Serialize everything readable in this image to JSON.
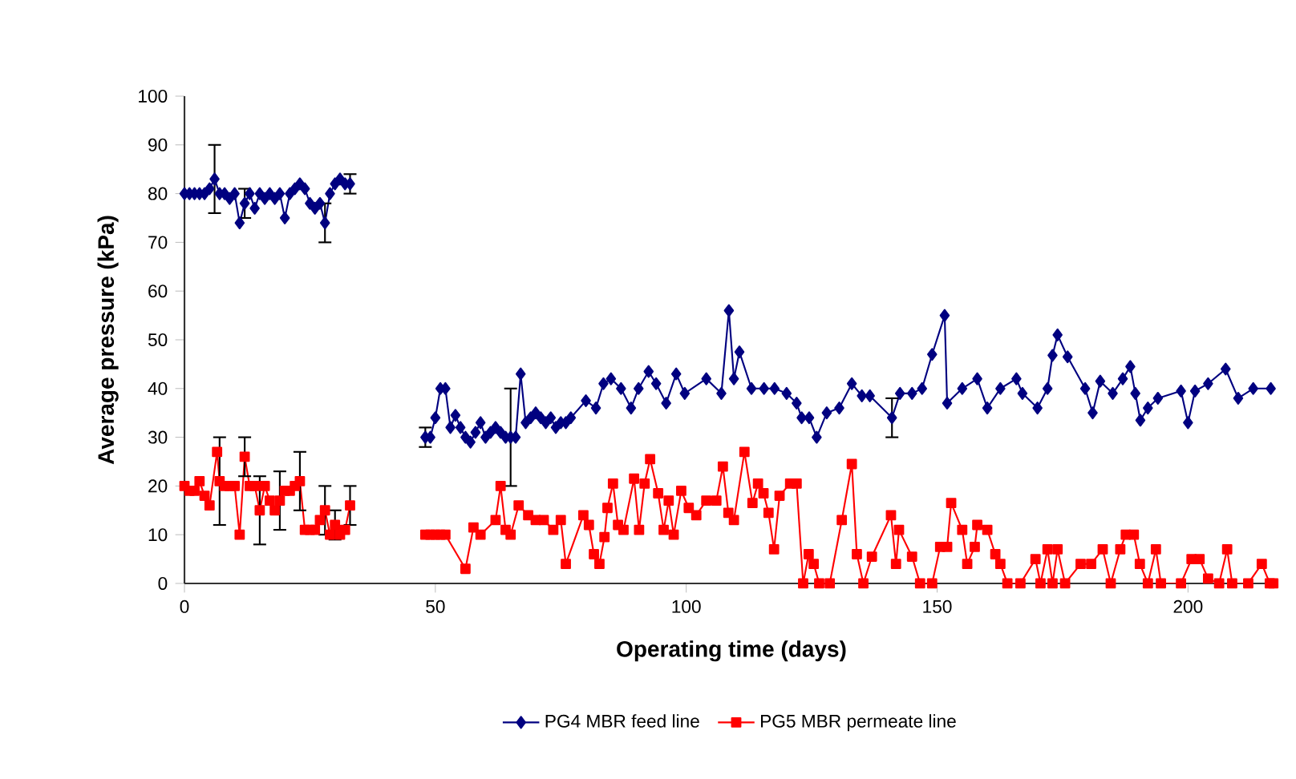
{
  "chart_data": {
    "type": "line",
    "xlabel": "Operating time (days)",
    "ylabel": "Average pressure (kPa)",
    "xlim": [
      0,
      218
    ],
    "xticks": [
      0,
      50,
      100,
      150,
      200
    ],
    "ylim": [
      0,
      100
    ],
    "yticks": [
      0,
      10,
      20,
      30,
      40,
      50,
      60,
      70,
      80,
      90,
      100
    ],
    "grid": false,
    "legend": "bottom",
    "series": [
      {
        "name": "PG4 MBR feed line",
        "color": "#000080",
        "marker": "diamond",
        "x": [
          0,
          1,
          2,
          3,
          4,
          5,
          6,
          7,
          8,
          9,
          10,
          11,
          12,
          13,
          14,
          15,
          16,
          17,
          18,
          19,
          20,
          21,
          22,
          23,
          24,
          25,
          26,
          27,
          28,
          29,
          30,
          31,
          32,
          33,
          40,
          48,
          49,
          50,
          51,
          52,
          53,
          54,
          55,
          56,
          57,
          58,
          59,
          60,
          61,
          62,
          63,
          64,
          65,
          66,
          67,
          68,
          69,
          70,
          71,
          72,
          73,
          74,
          75,
          76,
          77,
          80,
          82,
          83.5,
          85,
          87,
          89,
          90.5,
          92.5,
          94,
          96,
          98,
          99.7,
          104,
          107,
          108.5,
          109.5,
          110.6,
          113,
          115.5,
          117.6,
          120,
          122,
          123,
          124.5,
          126,
          128,
          130.5,
          133,
          135,
          136.6,
          141,
          142.6,
          145,
          147,
          149,
          151.5,
          152,
          155,
          158,
          160,
          162.6,
          165.8,
          167,
          170,
          172,
          173,
          174,
          176,
          179.5,
          181,
          182.5,
          185,
          187,
          188.5,
          189.5,
          190.5,
          192,
          194,
          198.6,
          200,
          201.4,
          204,
          207.5,
          210,
          213,
          216.5
        ],
        "values": [
          80,
          80,
          80,
          80,
          80,
          81,
          83,
          80,
          80,
          79,
          80,
          74,
          78,
          80,
          77,
          80,
          79,
          80,
          79,
          80,
          75,
          80,
          81,
          82,
          81,
          78,
          77,
          78,
          74,
          80,
          82,
          83,
          82,
          82,
          null,
          30,
          30,
          34,
          40,
          40,
          32,
          34.5,
          32,
          30,
          29,
          31,
          33,
          30,
          31,
          32,
          31,
          30,
          30,
          30,
          43,
          33,
          34,
          35,
          34,
          33,
          34,
          32,
          33,
          33,
          34,
          37.5,
          36,
          41,
          42,
          40,
          36,
          40,
          43.5,
          41,
          37,
          43,
          39,
          42,
          39,
          56,
          42,
          47.5,
          40,
          40,
          40,
          39,
          37,
          34,
          34,
          30,
          35,
          36,
          41,
          38.5,
          38.5,
          34,
          39,
          39,
          40,
          47,
          55,
          37,
          40,
          42,
          36,
          40,
          42,
          39,
          36,
          40,
          46.8,
          51,
          46.5,
          40,
          35,
          41.5,
          39,
          42,
          44.5,
          39,
          33.5,
          36,
          38,
          39.5,
          33,
          39.5,
          41,
          44,
          38,
          40,
          40
        ],
        "errors": [
          null,
          null,
          null,
          null,
          null,
          null,
          7,
          null,
          null,
          null,
          null,
          null,
          3,
          null,
          null,
          null,
          null,
          null,
          null,
          null,
          null,
          null,
          null,
          null,
          null,
          null,
          null,
          null,
          4,
          null,
          null,
          null,
          null,
          2,
          null,
          2,
          null,
          null,
          null,
          null,
          null,
          null,
          null,
          null,
          null,
          null,
          null,
          null,
          null,
          null,
          null,
          null,
          10,
          null,
          null,
          null,
          null,
          null,
          null,
          null,
          null,
          null,
          null,
          null,
          null,
          null,
          null,
          null,
          null,
          null,
          null,
          null,
          null,
          null,
          null,
          null,
          null,
          null,
          null,
          null,
          null,
          null,
          null,
          null,
          null,
          null,
          null,
          null,
          null,
          null,
          null,
          null,
          null,
          null,
          null,
          4,
          null,
          null,
          null,
          null,
          null,
          null,
          null,
          null,
          null,
          null,
          null,
          null,
          null,
          null,
          null,
          null,
          null,
          null,
          null,
          null,
          null,
          null,
          null,
          null,
          null,
          null,
          null,
          null,
          null,
          null,
          null,
          null,
          null,
          null,
          null
        ]
      },
      {
        "name": "PG5 MBR permeate line",
        "color": "#ff0000",
        "marker": "square",
        "x": [
          0,
          1,
          2,
          3,
          4,
          5,
          6.5,
          7,
          8,
          9,
          10,
          11,
          12,
          13,
          14,
          15,
          16,
          17,
          18,
          19,
          20,
          21,
          22,
          23,
          24,
          25,
          26,
          27,
          28,
          29,
          30,
          31,
          32,
          33,
          40,
          48,
          49,
          50,
          51,
          52,
          56,
          57.6,
          59,
          62,
          63,
          64,
          65,
          66.6,
          68.5,
          70,
          71.6,
          73.5,
          75,
          76,
          79.5,
          80.6,
          81.6,
          82.7,
          83.7,
          84.3,
          85.4,
          86.4,
          87.5,
          89.6,
          90.6,
          91.7,
          92.8,
          94.4,
          95.5,
          96.5,
          97.5,
          99,
          100.5,
          102,
          104,
          106,
          107.3,
          108.4,
          109.5,
          111.6,
          113.2,
          114.3,
          115.4,
          116.4,
          117.5,
          118.6,
          120.7,
          122,
          123.3,
          124.4,
          125.4,
          126.5,
          128.6,
          131,
          133,
          134,
          135.3,
          137,
          140.8,
          141.8,
          142.4,
          145,
          146.6,
          149,
          150.6,
          152,
          152.8,
          155,
          156,
          157.5,
          158,
          160,
          161.6,
          162.6,
          164,
          166.6,
          169.6,
          170.6,
          172,
          173,
          174,
          175.5,
          178.6,
          180.7,
          183,
          184.6,
          186.5,
          187.6,
          189.2,
          190.4,
          192,
          193.6,
          194.6,
          198.6,
          200.7,
          202.3,
          204,
          206.2,
          207.8,
          208.8,
          212,
          214.7,
          216.3,
          217
        ],
        "values": [
          20,
          19,
          19,
          21,
          18,
          16,
          27,
          21,
          20,
          20,
          20,
          10,
          26,
          20,
          20,
          15,
          20,
          17,
          15,
          17,
          19,
          19,
          20,
          21,
          11,
          11,
          11,
          13,
          15,
          10,
          12,
          10,
          11,
          16,
          null,
          10,
          10,
          10,
          10,
          10,
          3,
          11.5,
          10,
          13,
          20,
          11,
          10,
          16,
          14,
          13,
          13,
          11,
          13,
          4,
          14,
          12,
          6,
          4,
          9.5,
          15.5,
          20.5,
          12,
          11,
          21.5,
          11,
          20.5,
          25.5,
          18.5,
          11,
          17,
          10,
          19,
          15.5,
          14,
          17,
          17,
          24,
          14.5,
          13,
          27,
          16.5,
          20.5,
          18.5,
          14.5,
          7,
          18,
          20.5,
          20.5,
          0,
          6,
          4,
          0,
          0,
          13,
          24.5,
          6,
          0,
          5.5,
          14,
          4,
          11,
          5.5,
          0,
          0,
          7.5,
          7.5,
          16.5,
          11,
          4,
          7.5,
          12,
          11,
          6,
          4,
          0,
          0,
          5,
          0,
          7,
          0,
          7,
          0,
          4,
          4,
          7,
          0,
          7,
          10,
          10,
          4,
          0,
          7,
          0,
          0,
          5,
          5,
          1,
          0,
          7,
          0,
          0,
          4,
          0,
          0
        ],
        "errors": [
          null,
          null,
          null,
          null,
          null,
          null,
          null,
          9,
          null,
          null,
          null,
          null,
          4,
          null,
          null,
          7,
          null,
          null,
          null,
          6,
          null,
          null,
          null,
          6,
          null,
          null,
          null,
          null,
          5,
          null,
          3,
          null,
          null,
          4,
          null,
          null,
          null,
          null,
          null,
          null,
          null,
          null,
          null,
          null,
          null,
          null,
          null,
          null,
          null,
          null,
          null,
          null,
          null,
          null,
          null,
          null,
          null,
          null,
          null,
          null,
          null,
          null,
          null,
          null,
          null,
          null,
          null,
          null,
          null,
          null,
          null,
          null,
          null,
          null,
          null,
          null,
          null,
          null,
          null,
          null,
          null,
          null,
          null,
          null,
          null,
          null,
          null,
          null,
          null,
          null,
          null,
          null,
          null,
          null,
          null,
          null,
          null,
          null,
          null,
          null,
          null,
          null,
          null,
          null,
          null,
          null,
          null,
          null,
          null,
          null,
          null,
          null,
          null,
          null,
          null,
          null,
          null,
          null,
          null,
          null,
          null,
          null,
          null,
          null,
          null,
          null,
          null,
          null,
          null,
          null,
          null,
          null,
          null,
          null,
          null,
          null,
          null,
          null,
          null,
          null,
          null,
          null,
          null,
          null
        ]
      }
    ]
  }
}
